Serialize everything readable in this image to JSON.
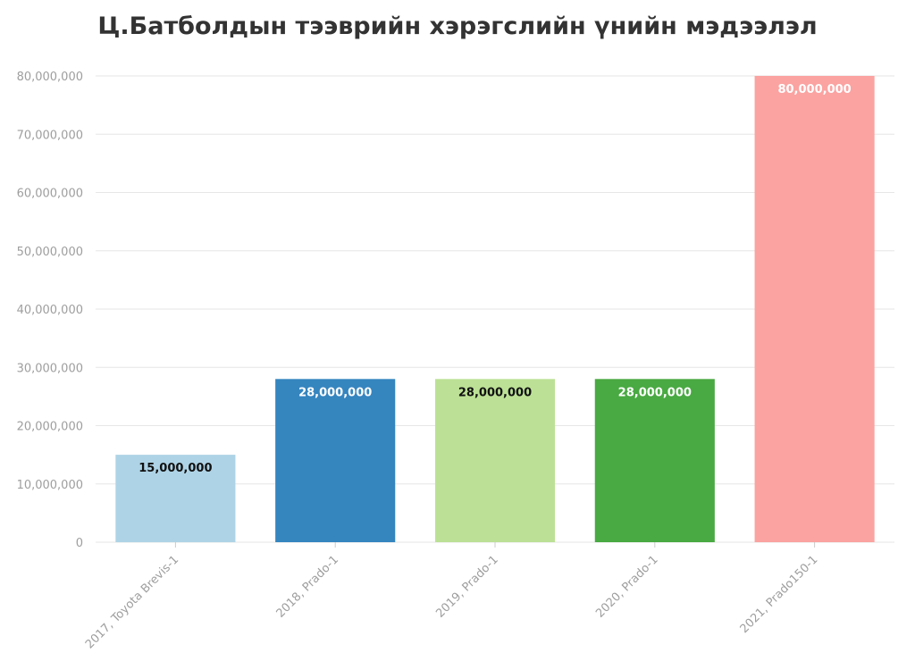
{
  "chart_data": {
    "type": "bar",
    "title": "Ц.Батболдын тээврийн хэрэгслийн үнийн мэдээлэл",
    "categories": [
      "2017, Toyota Brevis-1",
      "2018, Prado-1",
      "2019, Prado-1",
      "2020, Prado-1",
      "2021, Prado150-1"
    ],
    "values": [
      15000000,
      28000000,
      28000000,
      28000000,
      80000000
    ],
    "data_labels": [
      "15,000,000",
      "28,000,000",
      "28,000,000",
      "28,000,000",
      "80,000,000"
    ],
    "colors": [
      "#aed3e6",
      "#3585bf",
      "#bce196",
      "#49a942",
      "#fba3a1"
    ],
    "label_colors": [
      "#111111",
      "#ffffff",
      "#111111",
      "#ffffff",
      "#ffffff"
    ],
    "ylim": [
      0,
      80000000
    ],
    "yticks": [
      0,
      10000000,
      20000000,
      30000000,
      40000000,
      50000000,
      60000000,
      70000000,
      80000000
    ],
    "ytick_labels": [
      "0",
      "10,000,000",
      "20,000,000",
      "30,000,000",
      "40,000,000",
      "50,000,000",
      "60,000,000",
      "70,000,000",
      "80,000,000"
    ],
    "xlabel": "",
    "ylabel": "",
    "grid": true,
    "legend": "none"
  }
}
